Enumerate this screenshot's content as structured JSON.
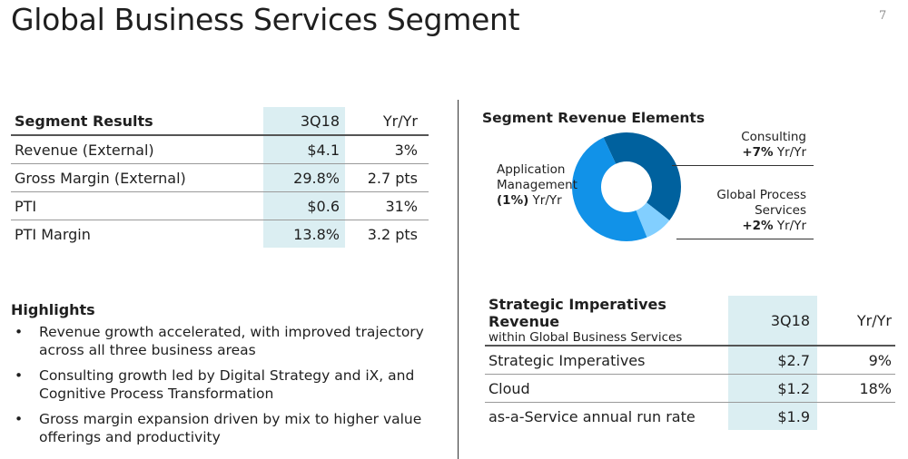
{
  "page": {
    "title": "Global Business Services Segment",
    "page_number": "7"
  },
  "segment_results": {
    "headers": [
      "Segment Results",
      "3Q18",
      "Yr/Yr"
    ],
    "rows": [
      [
        "Revenue (External)",
        "$4.1",
        "3%"
      ],
      [
        "Gross Margin (External)",
        "29.8%",
        "2.7 pts"
      ],
      [
        "PTI",
        "$0.6",
        "31%"
      ],
      [
        "PTI Margin",
        "13.8%",
        "3.2 pts"
      ]
    ]
  },
  "highlights": {
    "title": "Highlights",
    "items": [
      "Revenue growth accelerated, with improved trajectory across all three business areas",
      "Consulting growth led by Digital Strategy and iX, and Cognitive Process Transformation",
      "Gross margin expansion driven by mix to higher value offerings and productivity"
    ]
  },
  "revenue_elements": {
    "title": "Segment Revenue Elements",
    "application_management": {
      "line1": "Application",
      "line2": "Management",
      "growth": "(1%)",
      "suffix": " Yr/Yr"
    },
    "consulting": {
      "name": "Consulting",
      "growth": "+7%",
      "suffix": " Yr/Yr"
    },
    "global_process_services": {
      "line1": "Global Process",
      "line2": "Services",
      "growth": "+2%",
      "suffix": " Yr/Yr"
    },
    "colors": {
      "consulting": "#00619e",
      "application_management": "#1192e8",
      "global_process_services": "#82cfff"
    }
  },
  "strategic_imperatives": {
    "title": "Strategic Imperatives Revenue",
    "subtitle": "within Global Business Services",
    "period": "3Q18",
    "yr_label": "Yr/Yr",
    "rows": [
      [
        "Strategic Imperatives",
        "$2.7",
        "9%"
      ],
      [
        "Cloud",
        "$1.2",
        "18%"
      ],
      [
        "as-a-Service annual run rate",
        "$1.9",
        ""
      ]
    ]
  }
}
